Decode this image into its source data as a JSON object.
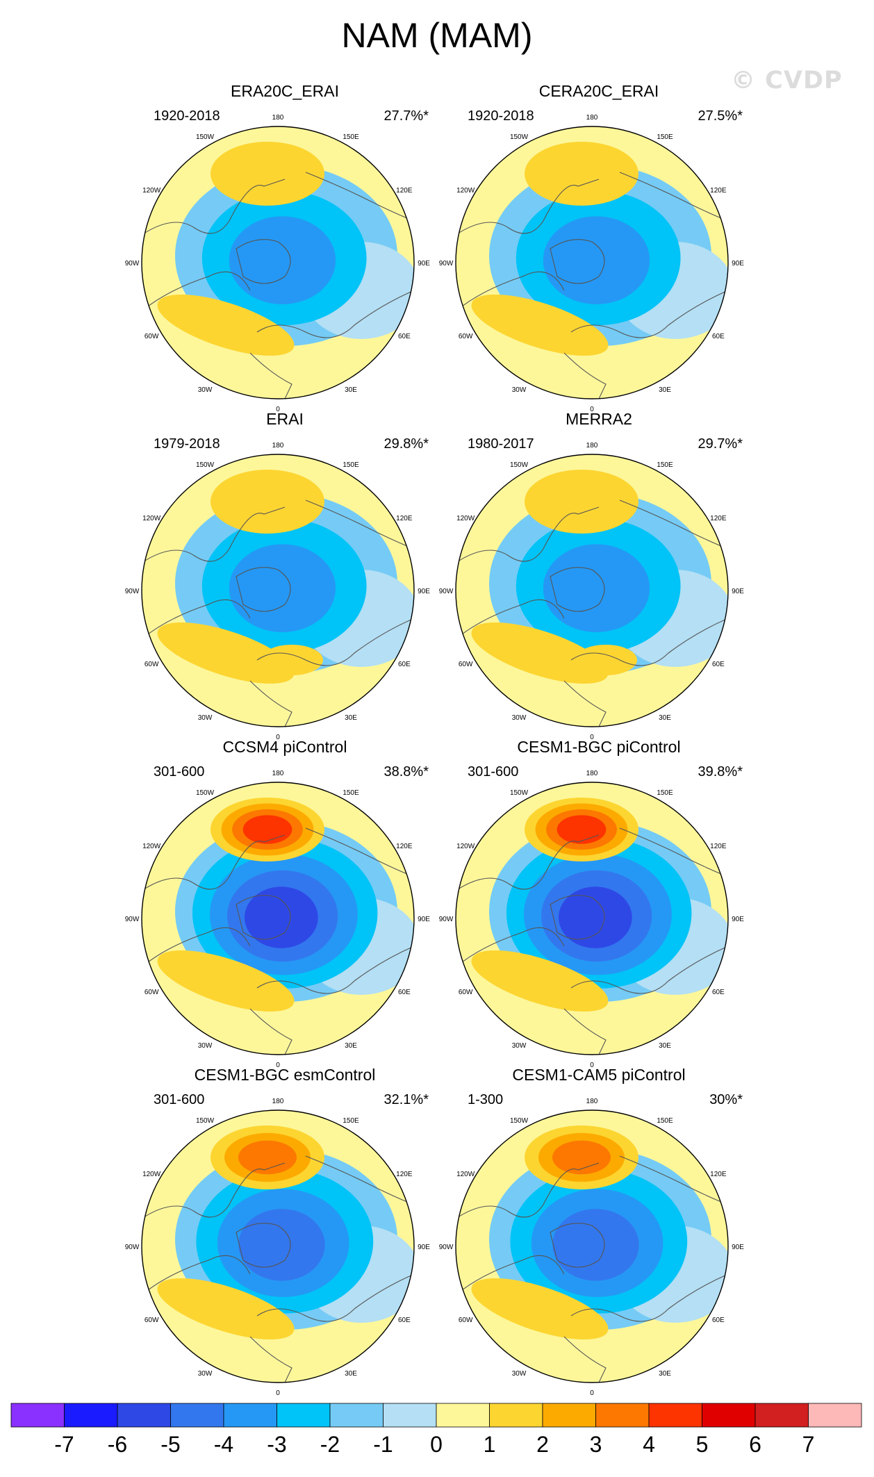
{
  "title": "NAM (MAM)",
  "watermark": "© CVDP",
  "panels": [
    {
      "title": "ERA20C_ERAI",
      "period": "1920-2018",
      "pct": "27.7%*",
      "fields": {
        "pac": 1.2,
        "atl": 1.7,
        "pole": -3.9,
        "eur": 0,
        "ring": -1,
        "hiCore": 0
      }
    },
    {
      "title": "CERA20C_ERAI",
      "period": "1920-2018",
      "pct": "27.5%*",
      "fields": {
        "pac": 1.2,
        "atl": 1.7,
        "pole": -3.9,
        "eur": 0,
        "ring": -1,
        "hiCore": 0
      }
    },
    {
      "title": "ERAI",
      "period": "1979-2018",
      "pct": "29.8%*",
      "fields": {
        "pac": 1.2,
        "atl": 1.8,
        "pole": -3.9,
        "eur": 1.2,
        "ring": -1,
        "hiCore": 0
      }
    },
    {
      "title": "MERRA2",
      "period": "1980-2017",
      "pct": "29.7%*",
      "fields": {
        "pac": 1.2,
        "atl": 1.8,
        "pole": -3.9,
        "eur": 1.2,
        "ring": -1,
        "hiCore": 0
      }
    },
    {
      "title": "CCSM4 piControl",
      "period": "301-600",
      "pct": "38.8%*",
      "fields": {
        "pac": 4.4,
        "atl": 1.8,
        "pole": -5.5,
        "eur": 0,
        "ring": -1,
        "hiCore": 1
      }
    },
    {
      "title": "CESM1-BGC piControl",
      "period": "301-600",
      "pct": "39.8%*",
      "fields": {
        "pac": 4.4,
        "atl": 1.8,
        "pole": -5.5,
        "eur": 0,
        "ring": -1,
        "hiCore": 1
      }
    },
    {
      "title": "CESM1-BGC esmControl",
      "period": "301-600",
      "pct": "32.1%*",
      "fields": {
        "pac": 3.4,
        "atl": 1.8,
        "pole": -4.8,
        "eur": 0,
        "ring": -1,
        "hiCore": 1
      }
    },
    {
      "title": "CESM1-CAM5 piControl",
      "period": "1-300",
      "pct": "30%*",
      "fields": {
        "pac": 3.4,
        "atl": 1.3,
        "pole": -4.4,
        "eur": 0,
        "ring": -1,
        "hiCore": 1
      }
    }
  ],
  "lon_labels": [
    "180",
    "150E",
    "120E",
    "90E",
    "60E",
    "30E",
    "0",
    "30W",
    "60W",
    "90W",
    "120W",
    "150W"
  ],
  "colorbar": {
    "colors": [
      "#8a30ff",
      "#1b1bff",
      "#2e48e6",
      "#3377ee",
      "#2598f5",
      "#00c3f7",
      "#75cbf5",
      "#b4dff4",
      "#fdf79a",
      "#fdd531",
      "#fcaa00",
      "#fc7800",
      "#fd3300",
      "#e00000",
      "#d21f1f",
      "#fdb8b8"
    ],
    "ticks": [
      "-7",
      "-6",
      "-5",
      "-4",
      "-3",
      "-2",
      "-1",
      "0",
      "1",
      "2",
      "3",
      "4",
      "5",
      "6",
      "7"
    ]
  }
}
